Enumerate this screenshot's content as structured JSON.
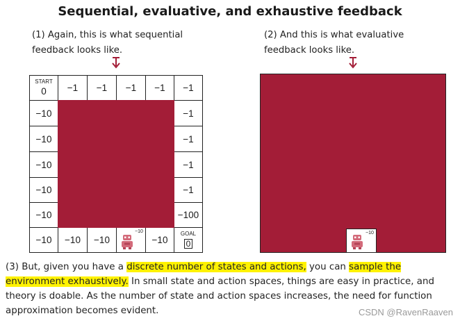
{
  "title": "Sequential, evaluative, and exhaustive feedback",
  "note1": {
    "line1": "(1) Again, this is what sequential",
    "line2": "feedback looks like."
  },
  "note2": {
    "line1": "(2) And this is what evaluative",
    "line2": "feedback looks like."
  },
  "grid": {
    "start_label": "START",
    "start_value": "0",
    "goal_label": "GOAL",
    "goal_value": "0",
    "top_row": [
      "−1",
      "−1",
      "−1",
      "−1",
      "−1"
    ],
    "left_col": [
      "−10",
      "−10",
      "−10",
      "−10",
      "−10",
      "−10"
    ],
    "right_col": [
      "−1",
      "−1",
      "−1",
      "−1",
      "−100"
    ],
    "bottom_row": [
      "−10",
      "−10",
      "",
      "−10"
    ],
    "robot_reward": "−10",
    "fill_color": "#a31d37"
  },
  "evaluative": {
    "robot_reward": "−10",
    "fill_color": "#a31d37"
  },
  "bottom_text": {
    "part1": "(3) But, given you have a ",
    "hl1": "discrete number of states and actions,",
    "part2": " you can ",
    "hl2": "sample the environment exhaustively.",
    "part3": " In small state and action spaces, things are easy in practice, and theory is doable. As the number of state and action spaces increases, the need for function approximation becomes evident."
  },
  "watermark": "CSDN @RavenRaaven",
  "icons": [
    "down-arrow-icon",
    "robot-icon"
  ]
}
